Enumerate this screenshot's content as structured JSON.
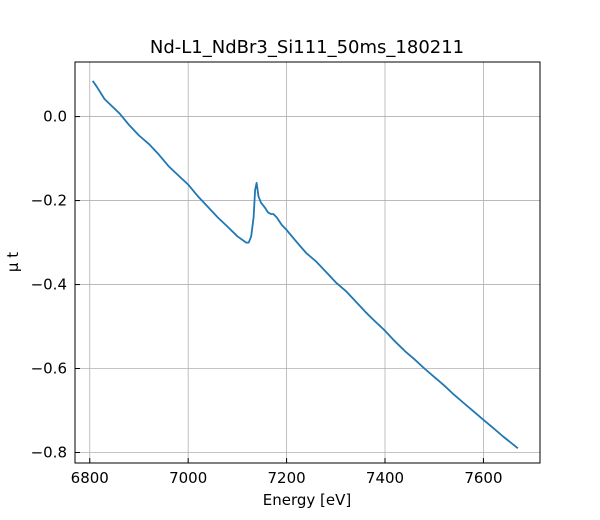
{
  "chart_data": {
    "type": "line",
    "title": "Nd-L1_NdBr3_Si111_50ms_180211",
    "xlabel": "Energy [eV]",
    "ylabel": "μ t",
    "xlim": [
      6770,
      7715
    ],
    "ylim": [
      -0.825,
      0.13
    ],
    "xticks": [
      6800,
      7000,
      7200,
      7400,
      7600
    ],
    "xtick_labels": [
      "6800",
      "7000",
      "7200",
      "7400",
      "7600"
    ],
    "yticks": [
      0.0,
      -0.2,
      -0.4,
      -0.6,
      -0.8
    ],
    "ytick_labels": [
      "0.0",
      "−0.2",
      "−0.4",
      "−0.6",
      "−0.8"
    ],
    "grid": true,
    "series": [
      {
        "color": "#1f77b4",
        "x": [
          6806,
          6815,
          6830,
          6845,
          6860,
          6880,
          6900,
          6920,
          6940,
          6960,
          6980,
          7000,
          7020,
          7040,
          7060,
          7080,
          7100,
          7118,
          7123,
          7128,
          7133,
          7136,
          7139,
          7143,
          7148,
          7155,
          7162,
          7168,
          7173,
          7180,
          7190,
          7200,
          7220,
          7240,
          7260,
          7280,
          7300,
          7320,
          7340,
          7360,
          7380,
          7400,
          7420,
          7440,
          7460,
          7480,
          7500,
          7520,
          7540,
          7560,
          7580,
          7600,
          7620,
          7640,
          7670
        ],
        "y": [
          0.085,
          0.07,
          0.042,
          0.025,
          0.008,
          -0.02,
          -0.045,
          -0.065,
          -0.09,
          -0.118,
          -0.14,
          -0.162,
          -0.19,
          -0.215,
          -0.24,
          -0.262,
          -0.285,
          -0.3,
          -0.3,
          -0.285,
          -0.24,
          -0.175,
          -0.158,
          -0.19,
          -0.205,
          -0.215,
          -0.228,
          -0.232,
          -0.232,
          -0.24,
          -0.258,
          -0.27,
          -0.298,
          -0.325,
          -0.345,
          -0.37,
          -0.395,
          -0.415,
          -0.44,
          -0.465,
          -0.488,
          -0.51,
          -0.535,
          -0.558,
          -0.578,
          -0.6,
          -0.62,
          -0.64,
          -0.662,
          -0.682,
          -0.702,
          -0.722,
          -0.742,
          -0.762,
          -0.79
        ]
      }
    ]
  }
}
